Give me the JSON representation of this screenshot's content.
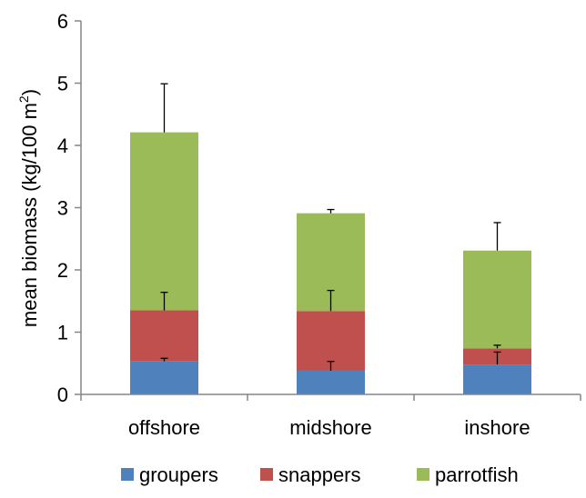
{
  "chart_data": {
    "type": "bar",
    "stacked": true,
    "categories": [
      "offshore",
      "midshore",
      "inshore"
    ],
    "series": [
      {
        "name": "groupers",
        "color": "#4F81BD",
        "values": [
          0.53,
          0.38,
          0.48
        ],
        "error": [
          0.05,
          0.15,
          0.2
        ]
      },
      {
        "name": "snappers",
        "color": "#C0504D",
        "values": [
          0.82,
          0.96,
          0.26
        ],
        "error": [
          0.29,
          0.33,
          0.05
        ]
      },
      {
        "name": "parrotfish",
        "color": "#9BBB59",
        "values": [
          2.86,
          1.57,
          1.57
        ],
        "error": [
          0.78,
          0.06,
          0.45
        ]
      }
    ],
    "ylabel_main": "mean biomass (kg/100 m",
    "ylabel_sup": "2",
    "ylabel_close": ")",
    "ylim": [
      0,
      6
    ],
    "yticks": [
      "0",
      "1",
      "2",
      "3",
      "4",
      "5",
      "6"
    ],
    "grid": false,
    "legend_position": "bottom"
  }
}
